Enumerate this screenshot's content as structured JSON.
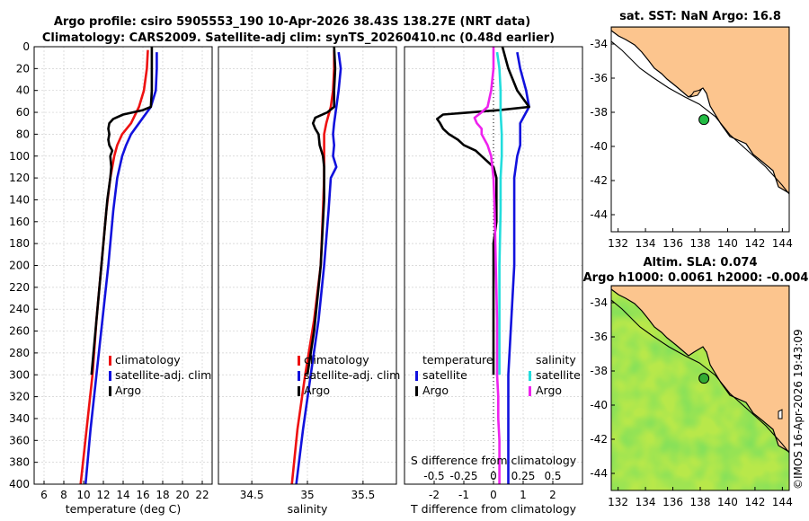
{
  "titles": {
    "line1": "Argo profile: csiro 5905553_190 10-Apr-2026 38.43S 138.27E (NRT data)",
    "line2": "Climatology: CARS2009. Satellite-adj clim: synTS_20260410.nc (0.48d earlier)",
    "sst_map": "sat. SST: NaN Argo: 16.8",
    "sla_line1": "Altim. SLA: 0.074",
    "sla_line2": "Argo h1000: 0.0061 h2000: -0.004"
  },
  "watermark": "©IMOS 16-Apr-2026 19:43:09",
  "colors": {
    "climatology": "#ee1111",
    "satellite": "#1111dd",
    "argo": "#000000",
    "satellite_s": "#22dddd",
    "argo_s": "#ee22ee",
    "land": "#fcc58e",
    "sea_green": "#33cc33"
  },
  "chart_data": [
    {
      "type": "line",
      "panel": "temperature",
      "xlabel": "temperature (deg C)",
      "ylabel": "",
      "xlim": [
        5,
        23
      ],
      "ylim": [
        400,
        0
      ],
      "xticks": [
        6,
        8,
        10,
        12,
        14,
        16,
        18,
        20,
        22
      ],
      "yticks": [
        0,
        20,
        40,
        60,
        80,
        100,
        120,
        140,
        160,
        180,
        200,
        220,
        240,
        260,
        280,
        300,
        320,
        340,
        360,
        380,
        400
      ],
      "grid": true,
      "legend": [
        "climatology",
        "satellite-adj. clim",
        "Argo"
      ],
      "series": [
        {
          "name": "climatology",
          "color_key": "climatology",
          "depth": [
            3,
            20,
            40,
            55,
            70,
            80,
            90,
            100,
            120,
            150,
            200,
            250,
            300,
            350,
            400
          ],
          "values": [
            16.5,
            16.4,
            16.1,
            15.6,
            14.8,
            13.9,
            13.4,
            13.1,
            12.7,
            12.3,
            11.8,
            11.3,
            10.9,
            10.3,
            9.7
          ]
        },
        {
          "name": "satellite-adj. clim",
          "color_key": "satellite",
          "depth": [
            5,
            20,
            40,
            55,
            70,
            80,
            90,
            100,
            120,
            150,
            200,
            250,
            300,
            350,
            400
          ],
          "values": [
            17.4,
            17.4,
            17.3,
            16.8,
            15.6,
            14.8,
            14.3,
            13.9,
            13.4,
            13.0,
            12.5,
            11.9,
            11.3,
            10.7,
            10.2
          ]
        },
        {
          "name": "Argo",
          "color_key": "argo",
          "depth": [
            0,
            20,
            40,
            55,
            58,
            62,
            66,
            70,
            75,
            80,
            85,
            90,
            95,
            100,
            110,
            120,
            140,
            160,
            180,
            200,
            220,
            240,
            260,
            280,
            300
          ],
          "values": [
            16.9,
            16.9,
            16.9,
            16.8,
            16.0,
            14.0,
            13.0,
            12.6,
            12.5,
            12.6,
            12.5,
            12.6,
            12.9,
            12.7,
            12.8,
            12.7,
            12.4,
            12.2,
            12.0,
            11.8,
            11.6,
            11.4,
            11.2,
            11.0,
            10.8
          ]
        }
      ]
    },
    {
      "type": "line",
      "panel": "salinity",
      "xlabel": "salinity",
      "xlim": [
        34.2,
        35.8
      ],
      "ylim": [
        400,
        0
      ],
      "xticks": [
        34.5,
        35,
        35.5
      ],
      "xtick_labels": [
        "34.5",
        "35",
        "35.5"
      ],
      "grid": true,
      "legend": [
        "climatology",
        "satellite-adj. clim",
        "Argo"
      ],
      "series": [
        {
          "name": "climatology",
          "color_key": "climatology",
          "depth": [
            3,
            20,
            40,
            55,
            70,
            80,
            90,
            100,
            120,
            150,
            200,
            250,
            300,
            350,
            400
          ],
          "values": [
            35.24,
            35.24,
            35.23,
            35.21,
            35.17,
            35.15,
            35.15,
            35.15,
            35.15,
            35.14,
            35.12,
            35.06,
            34.98,
            34.91,
            34.86
          ]
        },
        {
          "name": "satellite-adj. clim",
          "color_key": "satellite",
          "depth": [
            5,
            20,
            40,
            55,
            70,
            80,
            90,
            100,
            110,
            120,
            150,
            200,
            250,
            300,
            350,
            400
          ],
          "values": [
            35.28,
            35.3,
            35.28,
            35.26,
            35.24,
            35.23,
            35.24,
            35.23,
            35.26,
            35.21,
            35.19,
            35.15,
            35.1,
            35.03,
            34.96,
            34.9
          ]
        },
        {
          "name": "Argo",
          "color_key": "argo",
          "depth": [
            0,
            20,
            40,
            55,
            60,
            65,
            70,
            75,
            80,
            90,
            100,
            110,
            120,
            140,
            160,
            180,
            200,
            220,
            240,
            260,
            280,
            300
          ],
          "values": [
            35.24,
            35.25,
            35.24,
            35.24,
            35.18,
            35.07,
            35.05,
            35.07,
            35.1,
            35.11,
            35.14,
            35.15,
            35.15,
            35.15,
            35.14,
            35.13,
            35.12,
            35.1,
            35.08,
            35.06,
            35.03,
            35.0
          ]
        }
      ]
    },
    {
      "type": "line",
      "panel": "differences",
      "xlabel": "T difference from climatology",
      "xlabel_top": "S difference from climatology",
      "xlim": [
        -3,
        3
      ],
      "ylim": [
        400,
        0
      ],
      "xticks": [
        -2,
        -1,
        0,
        1,
        2
      ],
      "s_xticks": [
        -0.5,
        -0.25,
        0,
        0.25,
        0.5
      ],
      "s_xtick_labels": [
        "-0.5",
        "-0.25",
        "0",
        "0.25",
        "0.5"
      ],
      "s_scale": 4,
      "grid": true,
      "legend_groups": [
        {
          "title": "temperature",
          "entries": [
            "satellite",
            "Argo"
          ]
        },
        {
          "title": "salinity",
          "entries": [
            "satellite",
            "Argo"
          ]
        }
      ],
      "series": [
        {
          "name": "T satellite",
          "color_key": "satellite",
          "depth": [
            5,
            20,
            40,
            55,
            70,
            80,
            90,
            100,
            120,
            150,
            200,
            250,
            300,
            350,
            400
          ],
          "values": [
            0.8,
            0.9,
            1.1,
            1.2,
            0.9,
            0.9,
            0.9,
            0.8,
            0.7,
            0.7,
            0.7,
            0.6,
            0.5,
            0.5,
            0.5
          ]
        },
        {
          "name": "T Argo",
          "color_key": "argo",
          "depth": [
            0,
            20,
            40,
            55,
            58,
            62,
            66,
            70,
            75,
            80,
            85,
            90,
            95,
            100,
            110,
            120,
            140,
            160,
            180,
            200,
            220,
            240,
            260,
            280,
            300
          ],
          "values": [
            0.3,
            0.5,
            0.8,
            1.2,
            0.2,
            -1.7,
            -1.9,
            -1.8,
            -1.7,
            -1.5,
            -1.2,
            -1.0,
            -0.6,
            -0.4,
            0.0,
            0.1,
            0.1,
            0.1,
            0.0,
            0.0,
            0.0,
            0.0,
            0.0,
            0.0,
            0.0
          ]
        },
        {
          "name": "S satellite",
          "color_key": "satellite_s",
          "depth": [
            5,
            20,
            40,
            60,
            80,
            100,
            120,
            150,
            200,
            250,
            300
          ],
          "values": [
            0.03,
            0.05,
            0.06,
            0.06,
            0.07,
            0.07,
            0.06,
            0.06,
            0.05,
            0.05,
            0.05
          ]
        },
        {
          "name": "S Argo",
          "color_key": "argo_s",
          "depth": [
            0,
            20,
            40,
            55,
            60,
            65,
            70,
            75,
            80,
            90,
            100,
            120,
            150,
            200,
            250,
            300,
            320,
            340,
            360,
            380,
            400
          ],
          "values": [
            0.0,
            0.0,
            -0.02,
            -0.05,
            -0.1,
            -0.16,
            -0.14,
            -0.1,
            -0.1,
            -0.05,
            -0.02,
            0.0,
            0.01,
            0.02,
            0.03,
            0.03,
            0.04,
            0.04,
            0.05,
            0.05,
            0.05
          ]
        }
      ]
    },
    {
      "type": "map",
      "panel": "sst",
      "lon_range": [
        131.5,
        144.5
      ],
      "lat_range": [
        -45,
        -33
      ],
      "xticks": [
        132,
        134,
        136,
        138,
        140,
        142,
        144
      ],
      "yticks": [
        -34,
        -36,
        -38,
        -40,
        -42,
        -44
      ],
      "float_position": {
        "lon": 138.27,
        "lat": -38.43
      }
    },
    {
      "type": "map",
      "panel": "sla",
      "lon_range": [
        131.5,
        144.5
      ],
      "lat_range": [
        -45,
        -33
      ],
      "xticks": [
        132,
        134,
        136,
        138,
        140,
        142,
        144
      ],
      "yticks": [
        -34,
        -36,
        -38,
        -40,
        -42,
        -44
      ],
      "float_position": {
        "lon": 138.27,
        "lat": -38.43
      }
    }
  ]
}
